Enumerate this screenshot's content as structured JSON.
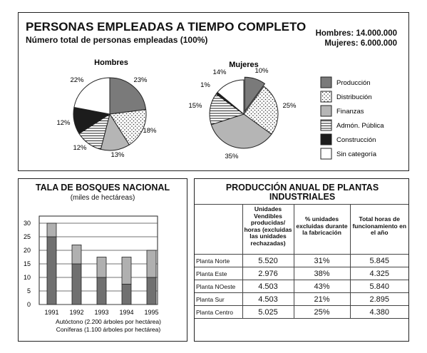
{
  "top": {
    "title": "PERSONAS EMPLEADAS A TIEMPO COMPLETO",
    "subtitle": "Número total de personas empleadas (100%)",
    "total_men": "Hombres: 14.000.000",
    "total_women": "Mujeres: 6.000.000"
  },
  "left_box": {
    "title": "TALA DE BOSQUES NACIONAL",
    "subtitle": "(miles de hectáreas)",
    "legend_1": "Autóctono (2.200 árboles por hectárea)",
    "legend_2": "Coníferas (1.100 árboles por hectárea)"
  },
  "right_box": {
    "title": "PRODUCCIÓN ANUAL DE PLANTAS INDUSTRIALES"
  },
  "colors": {
    "produccion": "#7a7a7a",
    "finanzas": "#b5b5b5",
    "construccion": "#1c1c1c",
    "bar_dark": "#707070",
    "bar_light": "#b0b0b0"
  },
  "chart_data": [
    {
      "type": "pie",
      "title": "Hombres",
      "categories": [
        "Producción",
        "Distribución",
        "Finanzas",
        "Admón. Pública",
        "Construcción",
        "Sin categoría"
      ],
      "values": [
        23,
        18,
        13,
        12,
        12,
        22
      ],
      "labels": [
        "23%",
        "18%",
        "13%",
        "12%",
        "12%",
        "22%"
      ]
    },
    {
      "type": "pie",
      "title": "Mujeres",
      "categories": [
        "Producción",
        "Distribución",
        "Finanzas",
        "Admón. Pública",
        "Construcción",
        "Sin categoría"
      ],
      "values": [
        10,
        25,
        35,
        15,
        1,
        14
      ],
      "labels": [
        "10%",
        "25%",
        "35%",
        "15%",
        "1%",
        "14%"
      ],
      "legend": {
        "position": "right",
        "entries": [
          "Producción",
          "Distribución",
          "Finanzas",
          "Admón. Pública",
          "Construcción",
          "Sin categoría"
        ]
      }
    },
    {
      "type": "bar",
      "stacked": true,
      "categories": [
        "1991",
        "1992",
        "1993",
        "1994",
        "1995"
      ],
      "series": [
        {
          "name": "Autóctono (2.200 árboles por hectárea)",
          "values": [
            5,
            7,
            7.5,
            10,
            10
          ]
        },
        {
          "name": "Coníferas (1.100 árboles por hectárea)",
          "values": [
            25,
            15,
            10,
            7.5,
            10
          ]
        }
      ],
      "ylim": [
        0,
        30
      ],
      "yticks": [
        "0",
        "5",
        "10",
        "15",
        "20",
        "25",
        "30"
      ],
      "grid": true
    },
    {
      "type": "table",
      "columns": [
        "",
        "Unidades Vendibles producidas/ horas (excluidas las unidades rechazadas)",
        "% unidades excluidas durante la fabricación",
        "Total horas de funcionamiento en el año"
      ],
      "rows": [
        [
          "Planta Norte",
          "5.520",
          "31%",
          "5.845"
        ],
        [
          "Planta Este",
          "2.976",
          "38%",
          "4.325"
        ],
        [
          "Planta NOeste",
          "4.503",
          "43%",
          "5.840"
        ],
        [
          "Planta Sur",
          "4.503",
          "21%",
          "2.895"
        ],
        [
          "Planta Centro",
          "5.025",
          "25%",
          "4.380"
        ]
      ]
    }
  ]
}
